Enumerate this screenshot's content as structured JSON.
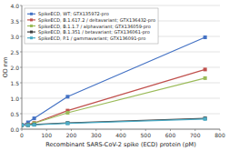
{
  "chart_data": {
    "type": "line",
    "title": "",
    "xlabel": "Recombinant SARS-CoV-2 spike (ECD) protein (pM)",
    "ylabel": "OD nm",
    "x": [
      0,
      25,
      50,
      185,
      740
    ],
    "series": [
      {
        "name": "SpikeECD, WT; GTX135972-pro",
        "color": "#4472C4",
        "values": [
          0.13,
          0.22,
          0.35,
          1.05,
          2.97
        ]
      },
      {
        "name": "SpikeECD, B.1.617.2 / deltavariant; GTX136432-pro",
        "color": "#C0504D",
        "values": [
          0.13,
          0.15,
          0.2,
          0.6,
          1.93
        ]
      },
      {
        "name": "SpikeECD, B.1.1.7 / alphavariant; GTX136059-pro",
        "color": "#9BBB59",
        "values": [
          0.13,
          0.14,
          0.19,
          0.53,
          1.65
        ]
      },
      {
        "name": "SpikeECD, B.1.351 / betavariant; GTX136061-pro",
        "color": "#404040",
        "values": [
          0.13,
          0.13,
          0.15,
          0.2,
          0.35
        ]
      },
      {
        "name": "SpikeECD, P.1 / gammavariant; GTX136091-pro",
        "color": "#4BACC6",
        "values": [
          0.13,
          0.13,
          0.14,
          0.19,
          0.33
        ]
      }
    ],
    "xlim": [
      0,
      800
    ],
    "ylim": [
      0,
      4
    ],
    "xticks": [
      0,
      100,
      200,
      300,
      400,
      500,
      600,
      700,
      800
    ],
    "yticks": [
      {
        "value": 0,
        "label": "0.0"
      },
      0.5,
      {
        "value": 1.0,
        "label": "1.0"
      },
      1.5,
      {
        "value": 2.0,
        "label": "2.0"
      },
      2.5,
      {
        "value": 3.0,
        "label": "3.0"
      },
      3.5,
      {
        "value": 4.0,
        "label": "4.0"
      }
    ],
    "grid": "y",
    "legend": "upper left",
    "marker": "square",
    "background_color": "#ffffff",
    "grid_color": "#d0d0d0"
  }
}
